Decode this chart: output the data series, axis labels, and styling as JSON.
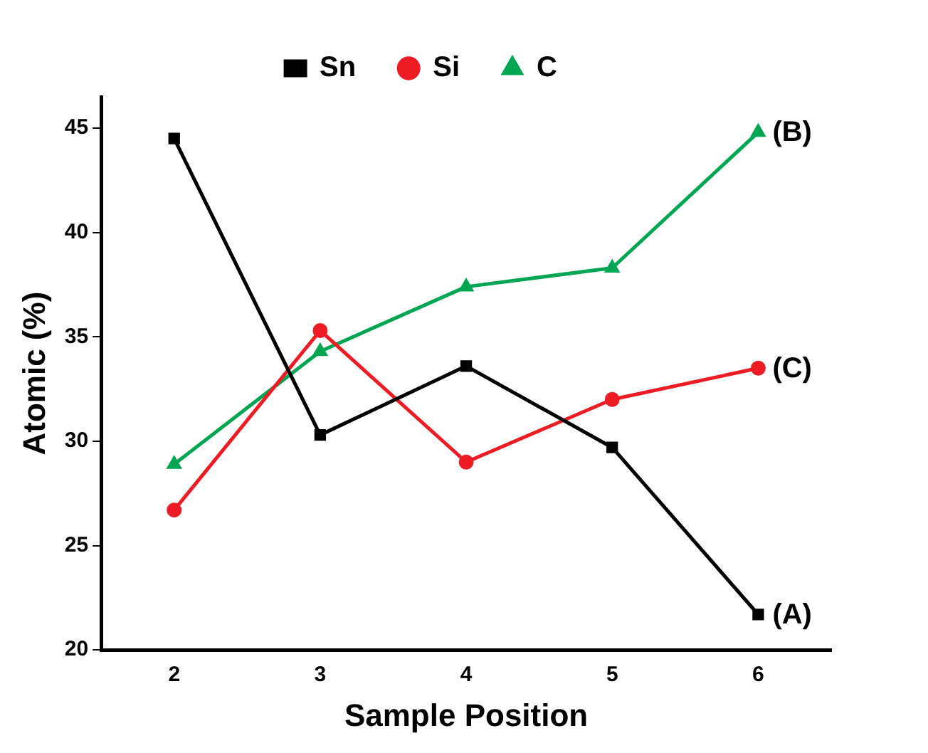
{
  "chart_data": {
    "type": "line",
    "xlabel": "Sample Position",
    "ylabel": "Atomic (%)",
    "x": [
      2,
      3,
      4,
      5,
      6
    ],
    "xlim": [
      1.5,
      6.5
    ],
    "xticks": [
      2,
      3,
      4,
      5,
      6
    ],
    "ylim": [
      20,
      46.5
    ],
    "yticks": [
      20,
      25,
      30,
      35,
      40,
      45
    ],
    "legend": "top",
    "grid": false,
    "series": [
      {
        "name": "Sn",
        "color": "#000000",
        "marker": "square",
        "values": [
          44.5,
          30.3,
          33.6,
          29.7,
          21.7
        ]
      },
      {
        "name": "Si",
        "color": "#ed1c24",
        "marker": "circle",
        "values": [
          26.7,
          35.3,
          29.0,
          32.0,
          33.5
        ]
      },
      {
        "name": "C",
        "color": "#00a651",
        "marker": "triangle",
        "values": [
          28.9,
          34.3,
          37.4,
          38.3,
          44.8
        ]
      }
    ],
    "annotations": [
      "(A)",
      "(C)",
      "(B)"
    ]
  }
}
